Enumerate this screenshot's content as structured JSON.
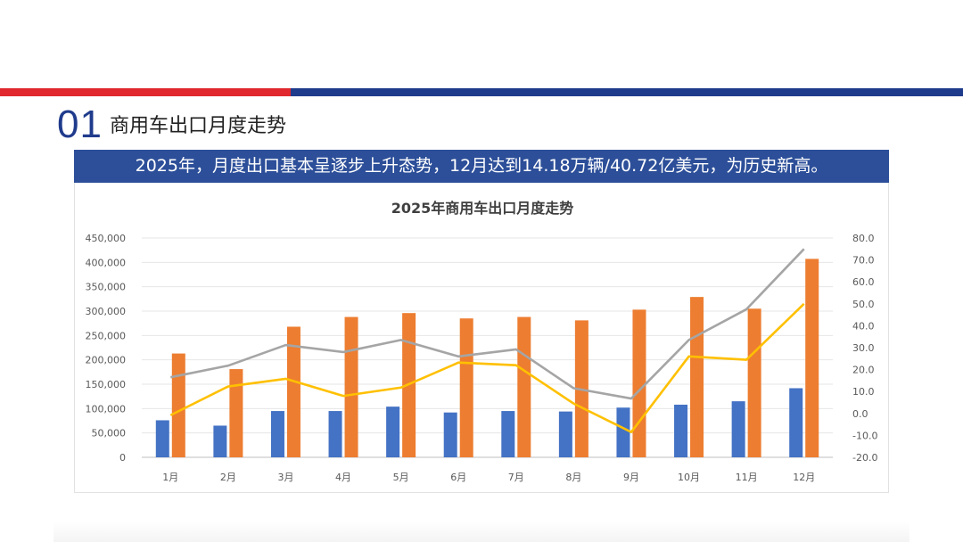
{
  "header": {
    "section_number": "01",
    "section_title": "商用车出口月度走势",
    "banner_text": "2025年，月度出口基本呈逐步上升态势，12月达到14.18万辆/40.72亿美元，为历史新高。"
  },
  "colors": {
    "red": "#e0282e",
    "navy": "#1f3b8c",
    "banner": "#2d4f99",
    "blue_bar": "#4472c4",
    "orange_bar": "#ed7d31",
    "gray_line": "#a5a5a5",
    "yellow_line": "#ffc000"
  },
  "chart_data": {
    "type": "bar",
    "title": "2025年商用车出口月度走势",
    "categories": [
      "1月",
      "2月",
      "3月",
      "4月",
      "5月",
      "6月",
      "7月",
      "8月",
      "9月",
      "10月",
      "11月",
      "12月"
    ],
    "left_axis": {
      "ylim": [
        0,
        450000
      ],
      "ticks": [
        "0",
        "50,000",
        "100,000",
        "150,000",
        "200,000",
        "250,000",
        "300,000",
        "350,000",
        "400,000",
        "450,000"
      ]
    },
    "right_axis": {
      "ylim": [
        -20,
        80
      ],
      "ticks": [
        "-20.0",
        "-10.0",
        "0.0",
        "10.0",
        "20.0",
        "30.0",
        "40.0",
        "50.0",
        "60.0",
        "70.0",
        "80.0"
      ]
    },
    "series": [
      {
        "name": "series-blue",
        "kind": "bar",
        "axis": "left",
        "color": "#4472c4",
        "values": [
          76000,
          65000,
          95000,
          95000,
          104000,
          92000,
          95000,
          94000,
          102000,
          108000,
          115000,
          141800
        ]
      },
      {
        "name": "series-orange",
        "kind": "bar",
        "axis": "left",
        "color": "#ed7d31",
        "values": [
          213000,
          181000,
          268000,
          288000,
          296000,
          285000,
          288000,
          281000,
          303000,
          329000,
          305000,
          407200
        ]
      },
      {
        "name": "series-gray",
        "kind": "line",
        "axis": "right",
        "color": "#a5a5a5",
        "values": [
          16.5,
          21.8,
          31.2,
          28.0,
          33.5,
          26.0,
          29.2,
          11.5,
          6.8,
          33.5,
          47.5,
          75.0
        ]
      },
      {
        "name": "series-yellow",
        "kind": "line",
        "axis": "right",
        "color": "#ffc000",
        "values": [
          -0.8,
          12.3,
          15.8,
          8.0,
          11.8,
          23.2,
          22.0,
          4.5,
          -8.5,
          26.0,
          24.5,
          50.0
        ]
      }
    ]
  }
}
